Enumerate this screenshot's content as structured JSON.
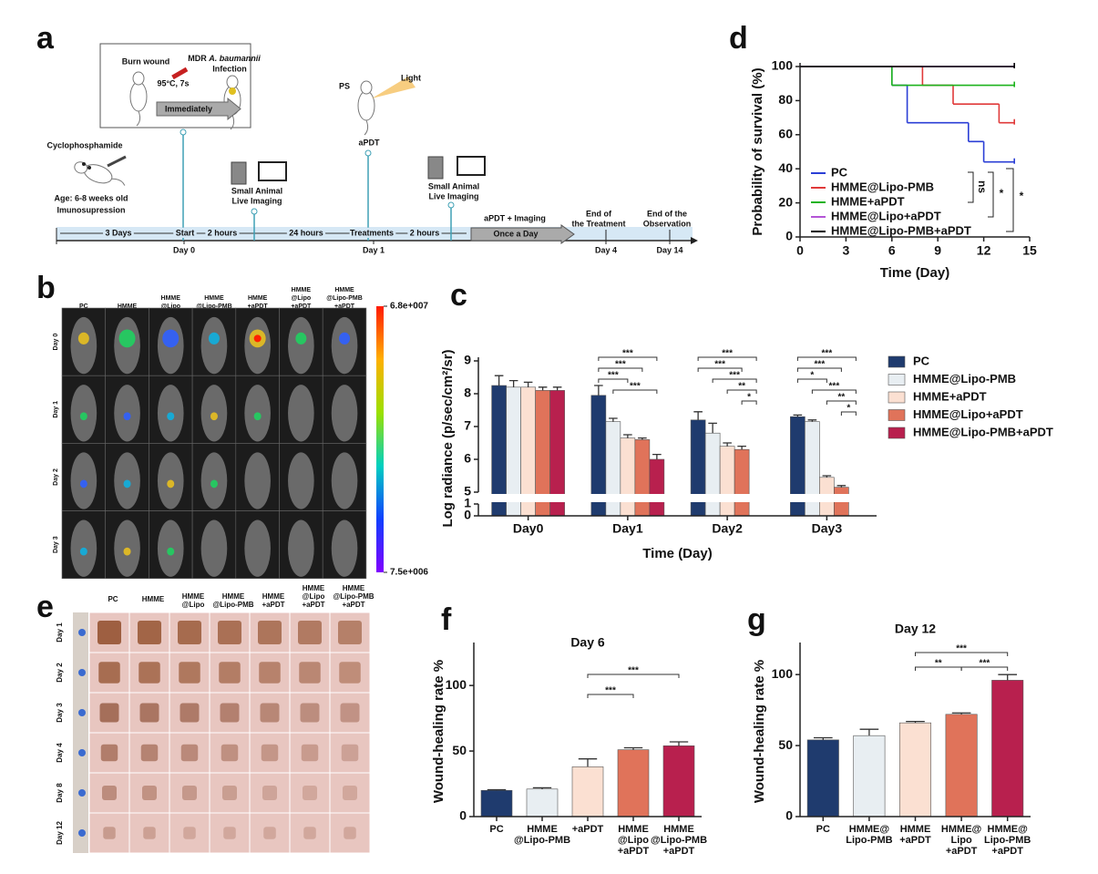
{
  "schematic": {
    "panel": "a",
    "burn_wound": "Burn wound",
    "mdr": "MDR",
    "species": "A. baumannii",
    "infection": "Infection",
    "temperature": "95°C, 7s",
    "immediately": "Immediately",
    "cyclophosphamide": "Cyclophosphamide",
    "age": "Age: 6-8 weeks old",
    "immunosuppression": "Imunosupression",
    "imaging_1": [
      "Small Animal",
      "Live Imaging"
    ],
    "imaging_2": [
      "Small Animal",
      "Live Imaging"
    ],
    "ps": "PS",
    "light": "Light",
    "apdt": "aPDT",
    "steps": [
      "3 Days",
      "Start",
      "2 hours",
      "24 hours",
      "Treatments",
      "2 hours"
    ],
    "apdt_imaging": "aPDT + Imaging",
    "once_a_day": "Once a Day",
    "end_treatment": [
      "End of",
      "the Treatment"
    ],
    "end_observation": [
      "End of the",
      "Observation"
    ],
    "days": [
      "Day 0",
      "Day 1",
      "Day 4",
      "Day 14"
    ]
  },
  "imaging": {
    "panel": "b",
    "columns": [
      [
        "PC"
      ],
      [
        "HMME"
      ],
      [
        "HMME",
        "@Lipo"
      ],
      [
        "HMME",
        "@Lipo-PMB"
      ],
      [
        "HMME",
        "+aPDT"
      ],
      [
        "HMME",
        "@Lipo",
        "+aPDT"
      ],
      [
        "HMME",
        "@Lipo-PMB",
        "+aPDT"
      ]
    ],
    "rows": [
      "Day 0",
      "Day 1",
      "Day 2",
      "Day 3"
    ],
    "colorbar_lim": [
      7500000,
      68000000
    ],
    "colorbar_ticks": [
      {
        "value": 68000000,
        "label": "6.8e+007"
      },
      {
        "value": 7500000,
        "label": "7.5e+006"
      }
    ]
  },
  "photos": {
    "panel": "e",
    "columns": [
      [
        "PC"
      ],
      [
        "HMME"
      ],
      [
        "HMME",
        "@Lipo"
      ],
      [
        "HMME",
        "@Lipo-PMB"
      ],
      [
        "HMME",
        "+aPDT"
      ],
      [
        "HMME",
        "@Lipo",
        "+aPDT"
      ],
      [
        "HMME",
        "@Lipo-PMB",
        "+aPDT"
      ]
    ],
    "rows": [
      "Day 1",
      "Day 2",
      "Day 3",
      "Day 4",
      "Day 8",
      "Day 12"
    ]
  },
  "chart_data": [
    {
      "type": "line",
      "panel": "d",
      "step": true,
      "xlabel": "Time (Day)",
      "ylabel": "Probability of survival (%)",
      "xlim": [
        0,
        15
      ],
      "xticks": [
        0,
        3,
        6,
        9,
        12,
        15
      ],
      "ylim": [
        0,
        100
      ],
      "yticks": [
        0,
        20,
        40,
        60,
        80,
        100
      ],
      "legend": "lower left",
      "series": [
        {
          "name": "PC",
          "color": "#2b3fd6",
          "x": [
            0,
            6,
            7,
            11,
            12,
            14
          ],
          "values": [
            100,
            89,
            67,
            56,
            44,
            44
          ]
        },
        {
          "name": "HMME@Lipo-PMB",
          "color": "#e03a3a",
          "x": [
            0,
            8,
            10,
            13,
            14
          ],
          "values": [
            100,
            89,
            78,
            67,
            67
          ]
        },
        {
          "name": "HMME+aPDT",
          "color": "#1db31d",
          "x": [
            0,
            6,
            14
          ],
          "values": [
            100,
            89,
            89
          ]
        },
        {
          "name": "HMME@Lipo+aPDT",
          "color": "#b455d6",
          "x": [
            0,
            14
          ],
          "values": [
            100,
            100
          ]
        },
        {
          "name": "HMME@Lipo-PMB+aPDT",
          "color": "#000000",
          "x": [
            0,
            14
          ],
          "values": [
            100,
            100
          ]
        }
      ],
      "annotations": [
        "ns",
        "*",
        "*"
      ]
    },
    {
      "type": "bar",
      "panel": "c",
      "xlabel": "Time (Day)",
      "ylabel": "Log radiance (p/sec/cm²/sr)",
      "categories": [
        "Day0",
        "Day1",
        "Day2",
        "Day3"
      ],
      "ylim": [
        5,
        9
      ],
      "yticks": [
        5,
        6,
        7,
        8,
        9
      ],
      "ylim_break": [
        0,
        1
      ],
      "yticks_break": [
        0,
        1
      ],
      "legend": "right",
      "series": [
        {
          "name": "PC",
          "color": "#1f3b6e",
          "values": [
            8.25,
            7.95,
            7.2,
            7.3
          ],
          "errors": [
            0.3,
            0.3,
            0.25,
            0.05
          ]
        },
        {
          "name": "HMME@Lipo-PMB",
          "color": "#e8eef2",
          "values": [
            8.2,
            7.15,
            6.8,
            7.15
          ],
          "errors": [
            0.2,
            0.1,
            0.3,
            0.05
          ]
        },
        {
          "name": "HMME+aPDT",
          "color": "#fbe0d2",
          "values": [
            8.2,
            6.65,
            6.4,
            5.45
          ],
          "errors": [
            0.15,
            0.1,
            0.1,
            0.05
          ]
        },
        {
          "name": "HMME@Lipo+aPDT",
          "color": "#e0735a",
          "values": [
            8.1,
            6.6,
            6.3,
            5.15
          ],
          "errors": [
            0.1,
            0.05,
            0.1,
            0.05
          ]
        },
        {
          "name": "HMME@Lipo-PMB+aPDT",
          "color": "#b8204e",
          "values": [
            8.1,
            6.0,
            null,
            null
          ],
          "errors": [
            0.1,
            0.15,
            null,
            null
          ]
        }
      ],
      "significance": [
        {
          "label": "***",
          "category": 1,
          "from": 0,
          "to": 4
        },
        {
          "label": "***",
          "category": 1,
          "from": 0,
          "to": 3
        },
        {
          "label": "***",
          "category": 1,
          "from": 0,
          "to": 2
        },
        {
          "label": "***",
          "category": 1,
          "from": 1,
          "to": 4
        },
        {
          "label": "***",
          "category": 2,
          "from": 0,
          "to": 4
        },
        {
          "label": "***",
          "category": 2,
          "from": 0,
          "to": 3
        },
        {
          "label": "***",
          "category": 2,
          "from": 1,
          "to": 4
        },
        {
          "label": "**",
          "category": 2,
          "from": 2,
          "to": 4
        },
        {
          "label": "*",
          "category": 2,
          "from": 3,
          "to": 4
        },
        {
          "label": "***",
          "category": 3,
          "from": 0,
          "to": 4
        },
        {
          "label": "***",
          "category": 3,
          "from": 0,
          "to": 3
        },
        {
          "label": "*",
          "category": 3,
          "from": 0,
          "to": 2
        },
        {
          "label": "***",
          "category": 3,
          "from": 1,
          "to": 4
        },
        {
          "label": "**",
          "category": 3,
          "from": 2,
          "to": 4
        },
        {
          "label": "*",
          "category": 3,
          "from": 3,
          "to": 4
        }
      ]
    },
    {
      "type": "bar",
      "panel": "f",
      "title": "Day 6",
      "ylabel": "Wound-healing rate %",
      "categories": [
        [
          "PC"
        ],
        [
          "HMME",
          "@Lipo-PMB"
        ],
        [
          "+aPDT"
        ],
        [
          "HMME",
          "@Lipo",
          "+aPDT"
        ],
        [
          "HMME",
          "@Lipo-PMB",
          "+aPDT"
        ]
      ],
      "values": [
        20,
        21,
        38,
        51,
        54
      ],
      "errors": [
        0.5,
        1,
        6,
        1.5,
        3
      ],
      "colors": [
        "#1f3b6e",
        "#e8eef2",
        "#fbe0d2",
        "#e0735a",
        "#b8204e"
      ],
      "ylim": [
        0,
        130
      ],
      "yticks": [
        0,
        50,
        100
      ],
      "significance": [
        {
          "label": "***",
          "from": 2,
          "to": 4
        },
        {
          "label": "***",
          "from": 2,
          "to": 3
        }
      ]
    },
    {
      "type": "bar",
      "panel": "g",
      "title": "Day 12",
      "ylabel": "Wound-healing rate %",
      "categories": [
        [
          "PC"
        ],
        [
          "HMME@",
          "Lipo-PMB"
        ],
        [
          "HMME",
          "+aPDT"
        ],
        [
          "HMME@",
          "Lipo",
          "+aPDT"
        ],
        [
          "HMME@",
          "Lipo-PMB",
          "+aPDT"
        ]
      ],
      "values": [
        54,
        57,
        66,
        72,
        96
      ],
      "errors": [
        1.5,
        4.5,
        1,
        1,
        4
      ],
      "colors": [
        "#1f3b6e",
        "#e8eef2",
        "#fbe0d2",
        "#e0735a",
        "#b8204e"
      ],
      "ylim": [
        0,
        120
      ],
      "yticks": [
        0,
        50,
        100
      ],
      "significance": [
        {
          "label": "***",
          "from": 2,
          "to": 4
        },
        {
          "label": "**",
          "from": 2,
          "to": 3
        },
        {
          "label": "***",
          "from": 3,
          "to": 4
        }
      ]
    }
  ]
}
